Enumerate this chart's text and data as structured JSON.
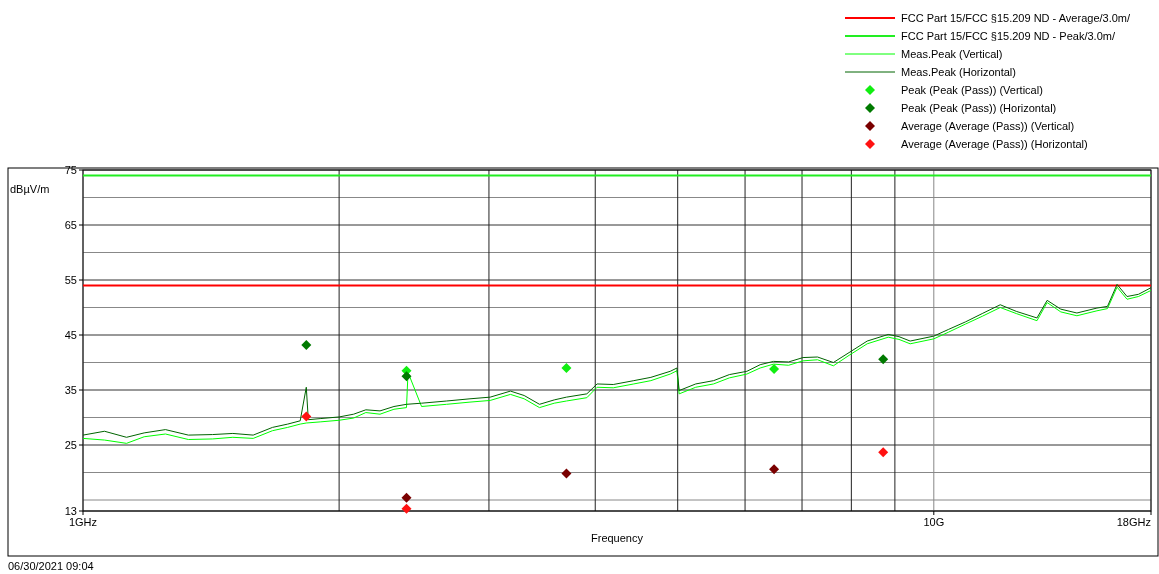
{
  "chart_data": {
    "type": "line",
    "xlabel": "Frequency",
    "ylabel": "dBµV/m",
    "log": "x",
    "grid": true,
    "legend": "top right",
    "xlim": [
      1,
      18
    ],
    "xticks": [
      {
        "value": 1,
        "label": "1GHz"
      },
      {
        "value": 2,
        "label": null
      },
      {
        "value": 3,
        "label": null
      },
      {
        "value": 4,
        "label": null
      },
      {
        "value": 5,
        "label": null
      },
      {
        "value": 6,
        "label": null
      },
      {
        "value": 7,
        "label": null
      },
      {
        "value": 8,
        "label": null
      },
      {
        "value": 9,
        "label": null
      },
      {
        "value": 10,
        "label": "10G"
      },
      {
        "value": 18,
        "label": "18GHz"
      }
    ],
    "ylim": [
      13,
      75
    ],
    "yticks": [
      13,
      {
        "value": 15,
        "label": null
      },
      {
        "value": 20,
        "label": null
      },
      25,
      {
        "value": 30,
        "label": null
      },
      35,
      {
        "value": 40,
        "label": null
      },
      45,
      {
        "value": 50,
        "label": null
      },
      55,
      {
        "value": 60,
        "label": null
      },
      65,
      {
        "value": 70,
        "label": null
      },
      75
    ],
    "annotations": [
      "06/30/2021 09:04"
    ],
    "series": [
      {
        "name": "FCC Part 15/FCC §15.209 ND - Average/3.0m/",
        "marker": "none",
        "color": "#ff0000",
        "x": [
          1,
          18
        ],
        "values": [
          54,
          54
        ]
      },
      {
        "name": "FCC Part 15/FCC §15.209 ND - Peak/3.0m/",
        "marker": "none",
        "color": "#22ee22",
        "x": [
          1,
          18
        ],
        "values": [
          74,
          74
        ]
      },
      {
        "name": "Meas.Peak (Vertical)",
        "marker": "none",
        "color": "#00ff00",
        "x": [
          1,
          1.06,
          1.125,
          1.18,
          1.25,
          1.33,
          1.42,
          1.5,
          1.585,
          1.67,
          1.74,
          1.8,
          1.83,
          1.9,
          2,
          2.08,
          2.15,
          2.234,
          2.32,
          2.4,
          2.41,
          2.5,
          2.675,
          2.85,
          3.01,
          3.18,
          3.3,
          3.44,
          3.58,
          3.7,
          3.91,
          4.02,
          4.2,
          4.44,
          4.65,
          4.9,
          4.99,
          5.02,
          5.25,
          5.51,
          5.75,
          6.03,
          6.25,
          6.48,
          6.75,
          7.02,
          7.3,
          7.62,
          7.95,
          8.35,
          8.84,
          9.1,
          9.38,
          10,
          10.4,
          10.9,
          11.4,
          11.97,
          12.5,
          13.22,
          13.59,
          14.1,
          14.73,
          15.55,
          16,
          16.42,
          16.87,
          17.4,
          18
        ],
        "values": [
          26.2,
          25.9,
          25.3,
          26.5,
          27,
          26,
          26.1,
          26.4,
          26.2,
          27.6,
          28.2,
          28.8,
          29,
          29.2,
          29.5,
          29.9,
          30.9,
          30.6,
          31.5,
          31.8,
          38.2,
          32,
          32.4,
          32.8,
          33.1,
          34.2,
          33.4,
          31.8,
          32.6,
          33,
          33.6,
          35.5,
          35.4,
          36.1,
          36.7,
          37.9,
          38.5,
          34.3,
          35.5,
          36.1,
          37.2,
          37.9,
          39,
          39.7,
          39.5,
          40.3,
          40.5,
          39.4,
          41.3,
          43.4,
          44.6,
          44.2,
          43.4,
          44.3,
          45.5,
          47,
          48.4,
          50,
          48.9,
          47.6,
          50.9,
          49.2,
          48.5,
          49.4,
          49.8,
          53.7,
          51.5,
          52,
          53.1
        ]
      },
      {
        "name": "Meas.Peak (Horizontal)",
        "marker": "none",
        "color": "#006400",
        "x": [
          1,
          1.06,
          1.125,
          1.18,
          1.25,
          1.33,
          1.42,
          1.5,
          1.585,
          1.67,
          1.74,
          1.8,
          1.83,
          1.84,
          1.9,
          2,
          2.08,
          2.15,
          2.234,
          2.32,
          2.4,
          2.5,
          2.675,
          2.85,
          3.01,
          3.18,
          3.3,
          3.44,
          3.58,
          3.7,
          3.91,
          4.02,
          4.2,
          4.44,
          4.65,
          4.9,
          4.99,
          5.02,
          5.25,
          5.51,
          5.75,
          6.03,
          6.25,
          6.48,
          6.75,
          7.02,
          7.3,
          7.62,
          7.95,
          8.35,
          8.84,
          9.1,
          9.38,
          10,
          10.4,
          10.9,
          11.4,
          11.97,
          12.5,
          13.22,
          13.59,
          14.1,
          14.73,
          15.55,
          16,
          16.42,
          16.87,
          17.4,
          18
        ],
        "values": [
          26.8,
          27.5,
          26.4,
          27.2,
          27.8,
          26.8,
          26.9,
          27.1,
          26.8,
          28.2,
          28.8,
          29.4,
          35.5,
          29.6,
          29.8,
          30.1,
          30.6,
          31.4,
          31.2,
          32,
          32.4,
          32.6,
          33,
          33.4,
          33.7,
          34.8,
          34,
          32.4,
          33.2,
          33.7,
          34.3,
          36.1,
          36,
          36.7,
          37.3,
          38.4,
          39,
          34.9,
          36.1,
          36.7,
          37.8,
          38.4,
          39.6,
          40.2,
          40.1,
          40.9,
          41,
          40,
          41.8,
          43.9,
          45.1,
          44.7,
          43.9,
          44.8,
          46,
          47.4,
          48.9,
          50.5,
          49.3,
          48.1,
          51.3,
          49.7,
          49,
          49.9,
          50.2,
          54.2,
          52,
          52.4,
          53.6
        ]
      },
      {
        "name": "Peak (Peak (Pass)) (Vertical)",
        "type": "scatter",
        "marker": "diamond",
        "color": "#11ee11",
        "x": [
          2.4,
          3.7,
          6.49
        ],
        "values": [
          38.5,
          39,
          38.8
        ]
      },
      {
        "name": "Peak (Peak (Pass)) (Horizontal)",
        "type": "scatter",
        "marker": "diamond",
        "color": "#007a00",
        "x": [
          1.83,
          2.4,
          8.72
        ],
        "values": [
          43.2,
          37.5,
          40.6
        ]
      },
      {
        "name": "Average (Average (Pass)) (Vertical)",
        "type": "scatter",
        "marker": "diamond",
        "color": "#7a0000",
        "x": [
          2.4,
          3.7,
          6.49
        ],
        "values": [
          15.4,
          19.8,
          20.6
        ]
      },
      {
        "name": "Average (Average (Pass)) (Horizontal)",
        "type": "scatter",
        "marker": "diamond",
        "color": "#ff1111",
        "x": [
          1.83,
          2.4,
          8.72
        ],
        "values": [
          30.2,
          13.4,
          23.7
        ]
      }
    ]
  }
}
